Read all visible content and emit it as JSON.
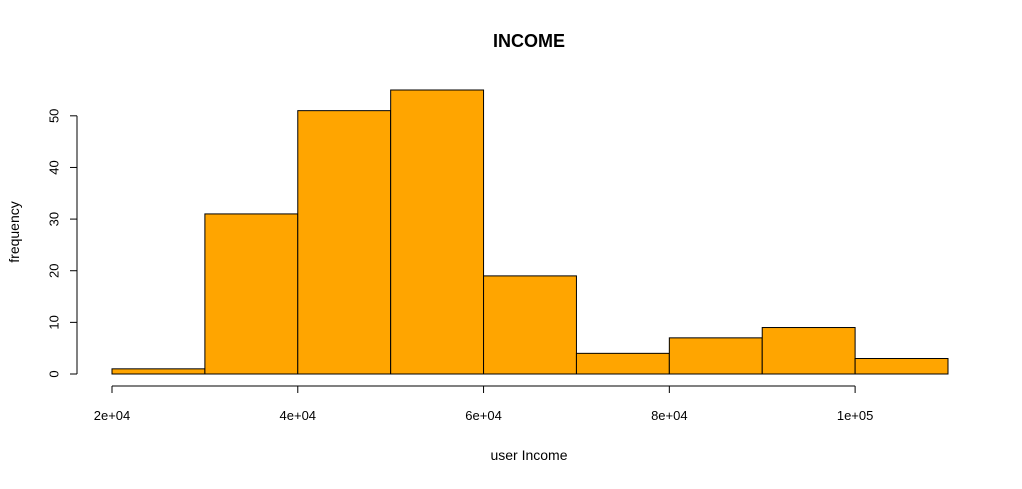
{
  "chart_data": {
    "type": "bar",
    "title": "INCOME",
    "xlabel": "user Income",
    "ylabel": "frequency",
    "bins": [
      {
        "from": 20000,
        "to": 30000,
        "count": 1
      },
      {
        "from": 30000,
        "to": 40000,
        "count": 31
      },
      {
        "from": 40000,
        "to": 50000,
        "count": 51
      },
      {
        "from": 50000,
        "to": 60000,
        "count": 55
      },
      {
        "from": 60000,
        "to": 70000,
        "count": 19
      },
      {
        "from": 70000,
        "to": 80000,
        "count": 4
      },
      {
        "from": 80000,
        "to": 90000,
        "count": 7
      },
      {
        "from": 90000,
        "to": 100000,
        "count": 9
      },
      {
        "from": 100000,
        "to": 110000,
        "count": 3
      }
    ],
    "x_ticks": [
      {
        "value": 20000,
        "label": "2e+04"
      },
      {
        "value": 40000,
        "label": "4e+04"
      },
      {
        "value": 60000,
        "label": "6e+04"
      },
      {
        "value": 80000,
        "label": "8e+04"
      },
      {
        "value": 100000,
        "label": "1e+05"
      }
    ],
    "y_ticks": [
      {
        "value": 0,
        "label": "0"
      },
      {
        "value": 10,
        "label": "10"
      },
      {
        "value": 20,
        "label": "20"
      },
      {
        "value": 30,
        "label": "30"
      },
      {
        "value": 40,
        "label": "40"
      },
      {
        "value": 50,
        "label": "50"
      }
    ],
    "xlim": [
      20000,
      110000
    ],
    "ylim": [
      0,
      55
    ],
    "bar_color": "#FFA500",
    "edge_color": "#000000",
    "grid": false
  }
}
